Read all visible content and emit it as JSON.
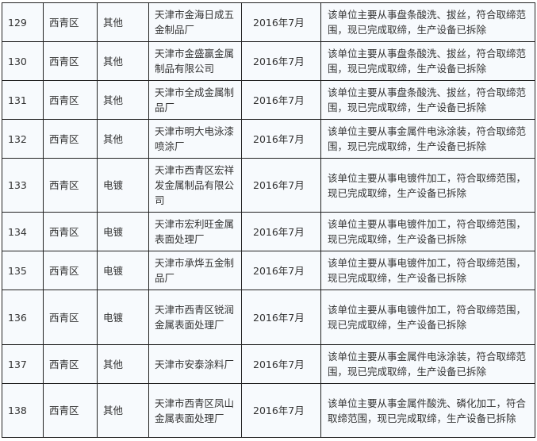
{
  "rows": [
    {
      "no": "129",
      "district": "西青区",
      "type": "其他",
      "name": "天津市金海日成五金制品厂",
      "date": "2016年7月",
      "desc": "该单位主要从事盘条酸洗、拔丝，符合取缔范围，现已完成取缔，生产设备已拆除"
    },
    {
      "no": "130",
      "district": "西青区",
      "type": "其他",
      "name": "天津市金盛赢金属制品有限公司",
      "date": "2016年7月",
      "desc": "该单位主要从事盘条酸洗、拔丝，符合取缔范围，现已完成取缔，生产设备已拆除"
    },
    {
      "no": "131",
      "district": "西青区",
      "type": "其他",
      "name": "天津市全成金属制品厂",
      "date": "2016年7月",
      "desc": "该单位主要从事盘条酸洗、拔丝，符合取缔范围，现已完成取缔，生产设备已拆除"
    },
    {
      "no": "132",
      "district": "西青区",
      "type": "其他",
      "name": "天津市明大电泳漆喷涂厂",
      "date": "2016年7月",
      "desc": "该单位主要从事金属件电泳涂装，符合取缔范围，现已完成取缔，生产设备已拆除"
    },
    {
      "no": "133",
      "district": "西青区",
      "type": "电镀",
      "name": "天津市西青区宏祥发金属制品有限公司",
      "date": "2016年7月",
      "desc": "该单位主要从事电镀件加工，符合取缔范围，现已完成取缔，生产设备已拆除"
    },
    {
      "no": "134",
      "district": "西青区",
      "type": "电镀",
      "name": "天津市宏利旺金属表面处理厂",
      "date": "2016年7月",
      "desc": "该单位主要从事电镀件加工，符合取缔范围，现已完成取缔，生产设备已拆除"
    },
    {
      "no": "135",
      "district": "西青区",
      "type": "电镀",
      "name": "天津市承烨五金制品厂",
      "date": "2016年7月",
      "desc": "该单位主要从事电镀件加工，符合取缔范围，现已完成取缔，生产设备已拆除"
    },
    {
      "no": "136",
      "district": "西青区",
      "type": "电镀",
      "name": "天津市西青区锐润金属表面处理厂",
      "date": "2016年7月",
      "desc": "该单位主要从事电镀件加工，符合取缔范围，现已完成取缔，生产设备已拆除"
    },
    {
      "no": "137",
      "district": "西青区",
      "type": "其他",
      "name": "天津市安泰涂料厂",
      "date": "2016年7月",
      "desc": "该单位主要从事金属件电泳涂装，符合取缔范围，现已完成取缔，生产设备已拆除"
    },
    {
      "no": "138",
      "district": "西青区",
      "type": "其他",
      "name": "天津市西青区凤山金属表面处理厂",
      "date": "2016年7月",
      "desc": "该单位主要从事金属件酸洗、磷化加工，符合取缔范围，现已完成取缔，生产设备已拆除"
    }
  ]
}
